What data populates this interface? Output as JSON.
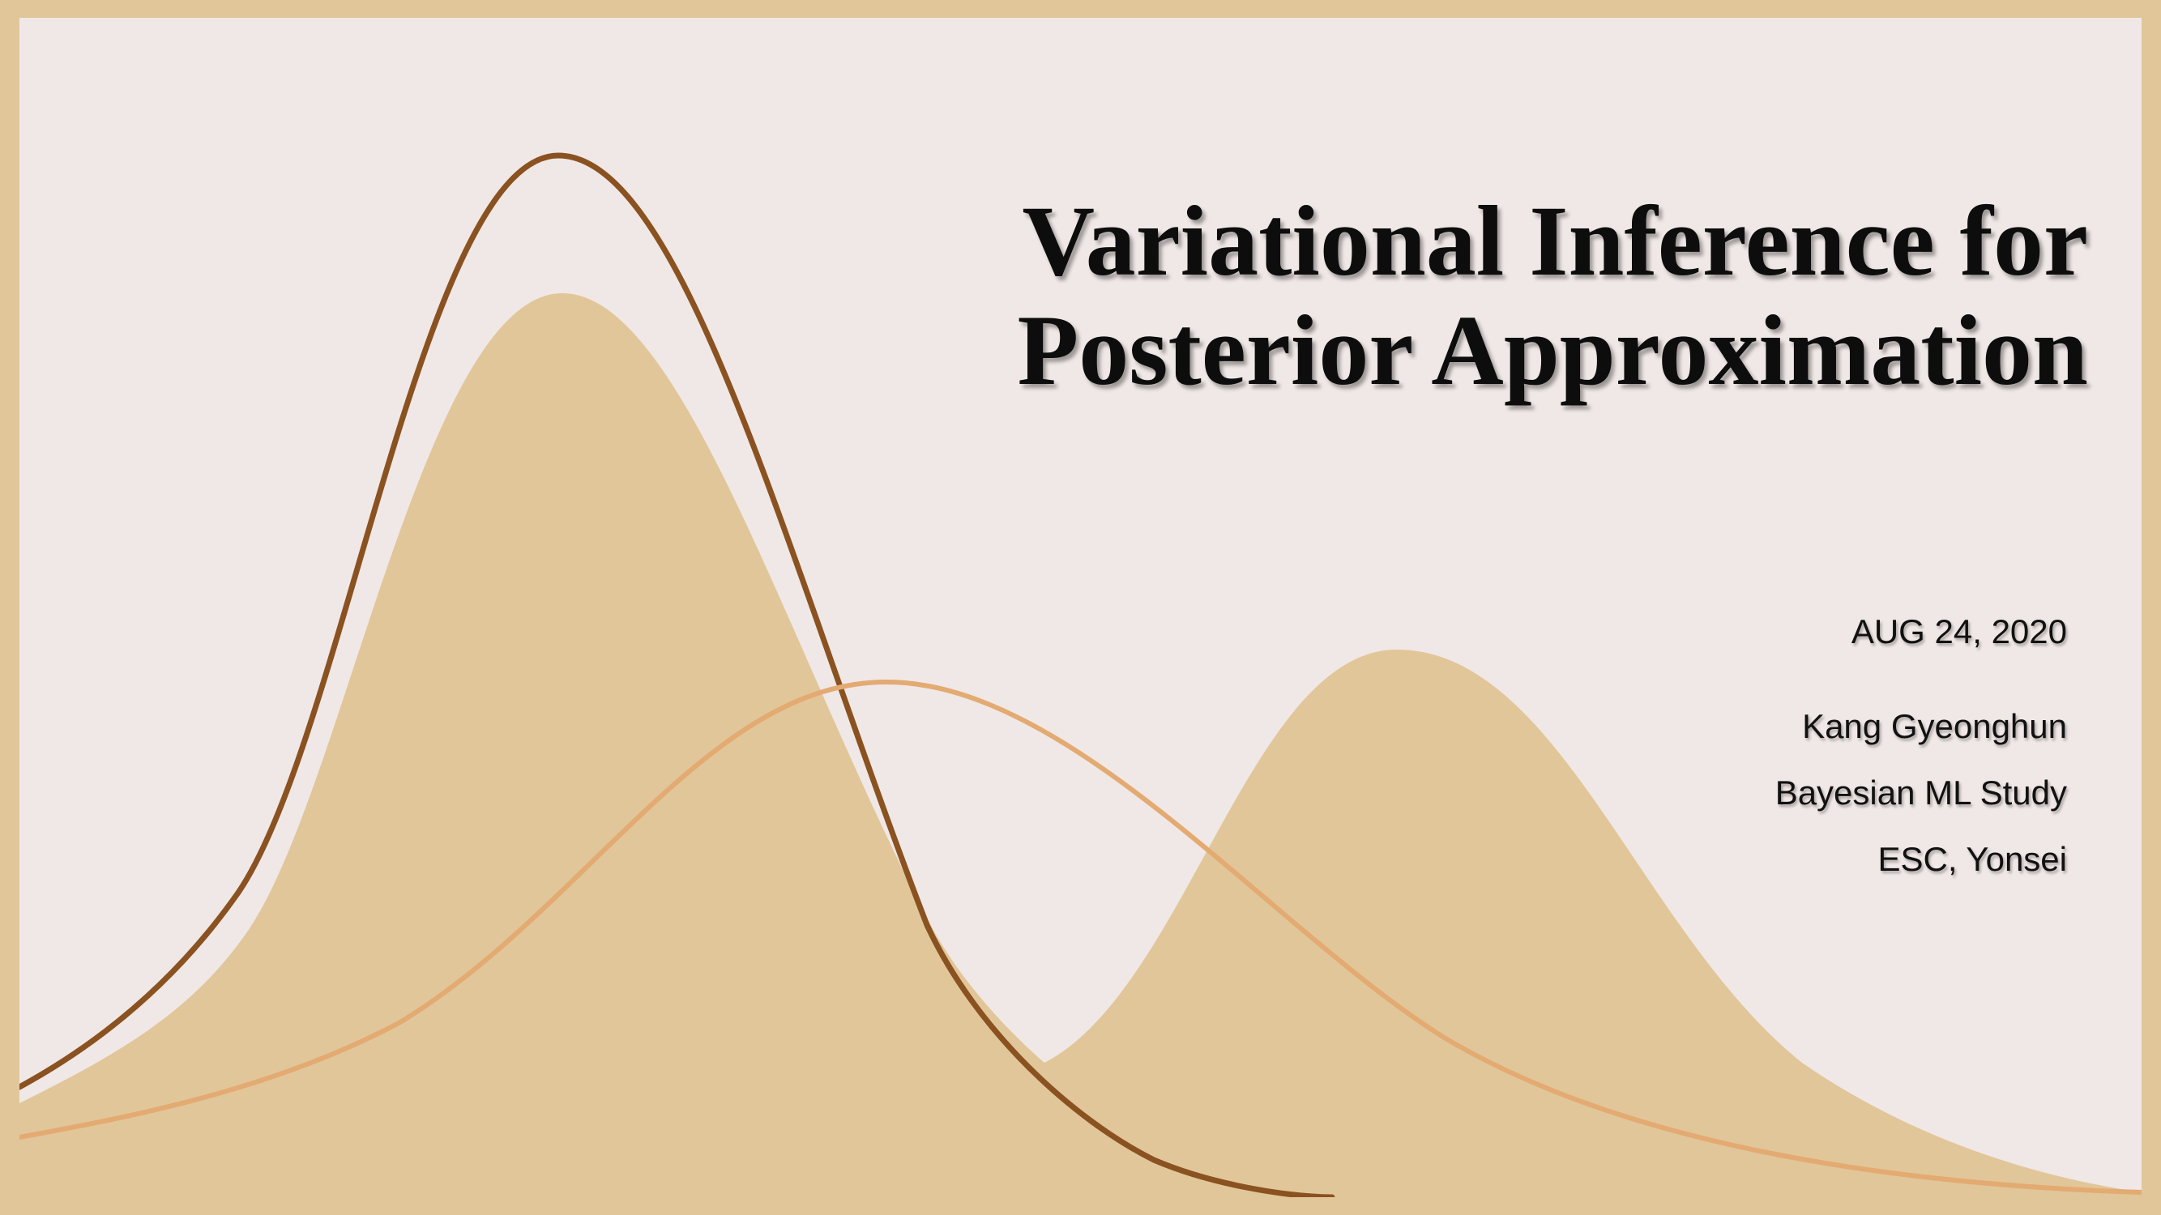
{
  "slide": {
    "title_lines": [
      "Variational Inference for",
      "Posterior Approximation"
    ],
    "date": "AUG 24, 2020",
    "author": "Kang Gyeonghun",
    "group": "Bayesian ML Study",
    "affiliation": "ESC, Yonsei"
  },
  "colors": {
    "frame": "#e1c699",
    "background": "#f0e8e6",
    "filled_curves": "#e1c699",
    "dark_curve": "#8a5220",
    "light_curve": "#e3aa72",
    "text": "#0d0d0d"
  }
}
